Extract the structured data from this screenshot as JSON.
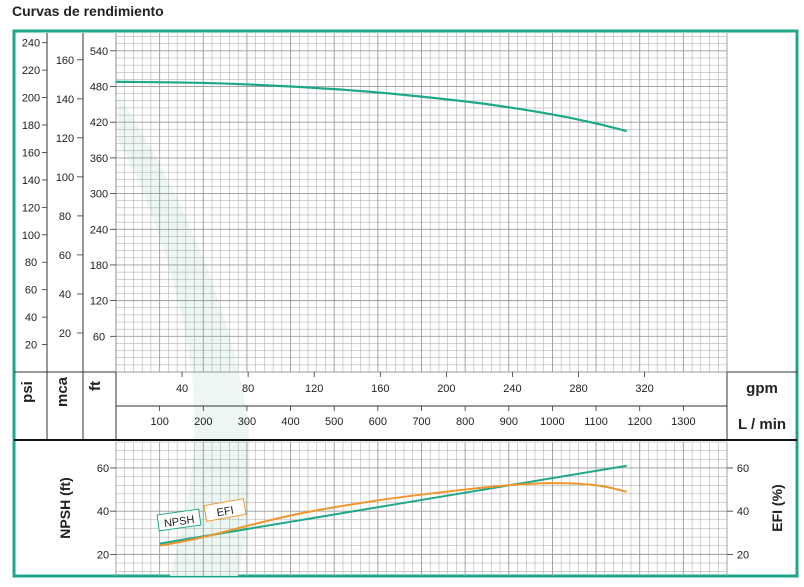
{
  "title": "Curvas de rendimiento",
  "colors": {
    "frame": "#1ea88a",
    "head_curve": "#1ea88a",
    "npsh_curve": "#1ea88a",
    "efi_curve": "#f0962e",
    "grid": "#9a9a9a",
    "text": "#222222"
  },
  "axes_labels": {
    "psi": "psi",
    "mca": "mca",
    "ft": "ft",
    "gpm": "gpm",
    "lmin": "L / min",
    "npsh": "NPSH (ft)",
    "efi": "EFI (%)"
  },
  "chart_data": [
    {
      "type": "line",
      "name": "head_curve_panel",
      "flow_axis_lmin": {
        "range": [
          0,
          1400
        ],
        "ticks": [
          100,
          200,
          300,
          400,
          500,
          600,
          700,
          800,
          900,
          1000,
          1100,
          1200,
          1300
        ],
        "label": "L / min"
      },
      "flow_axis_gpm": {
        "ticks": [
          40,
          80,
          120,
          160,
          200,
          240,
          280,
          320
        ],
        "label": "gpm"
      },
      "y_axis_ft": {
        "range": [
          0,
          570
        ],
        "ticks": [
          60,
          120,
          180,
          240,
          300,
          360,
          420,
          480,
          540
        ],
        "label": "ft"
      },
      "y_axis_mca": {
        "ticks": [
          20,
          40,
          60,
          80,
          100,
          120,
          140,
          160
        ],
        "label": "mca"
      },
      "y_axis_psi": {
        "ticks": [
          20,
          40,
          60,
          80,
          100,
          120,
          140,
          160,
          180,
          200,
          220,
          240
        ],
        "label": "psi"
      },
      "grid": true,
      "series": [
        {
          "x": [
            0,
            200,
            400,
            600,
            800,
            900,
            1000,
            1100,
            1170
          ],
          "y": [
            488,
            486,
            480,
            470,
            455,
            445,
            433,
            418,
            405
          ]
        }
      ]
    },
    {
      "type": "line",
      "name": "npsh_efficiency_panel",
      "x_axis_lmin": {
        "range": [
          0,
          1400
        ]
      },
      "y_axis_npsh": {
        "range": [
          10,
          72
        ],
        "ticks": [
          20,
          40,
          60
        ],
        "label": "NPSH (ft)"
      },
      "y_axis_efi": {
        "range": [
          10,
          72
        ],
        "ticks": [
          20,
          40,
          60
        ],
        "label": "EFI (%)"
      },
      "grid": true,
      "series": [
        {
          "name": "NPSH",
          "x": [
            100,
            1170
          ],
          "y": [
            25,
            61
          ]
        },
        {
          "name": "EFI",
          "x": [
            100,
            200,
            400,
            600,
            800,
            900,
            1000,
            1100,
            1170
          ],
          "y": [
            24,
            28,
            38,
            45,
            50,
            52,
            53,
            52,
            49
          ]
        }
      ]
    }
  ]
}
